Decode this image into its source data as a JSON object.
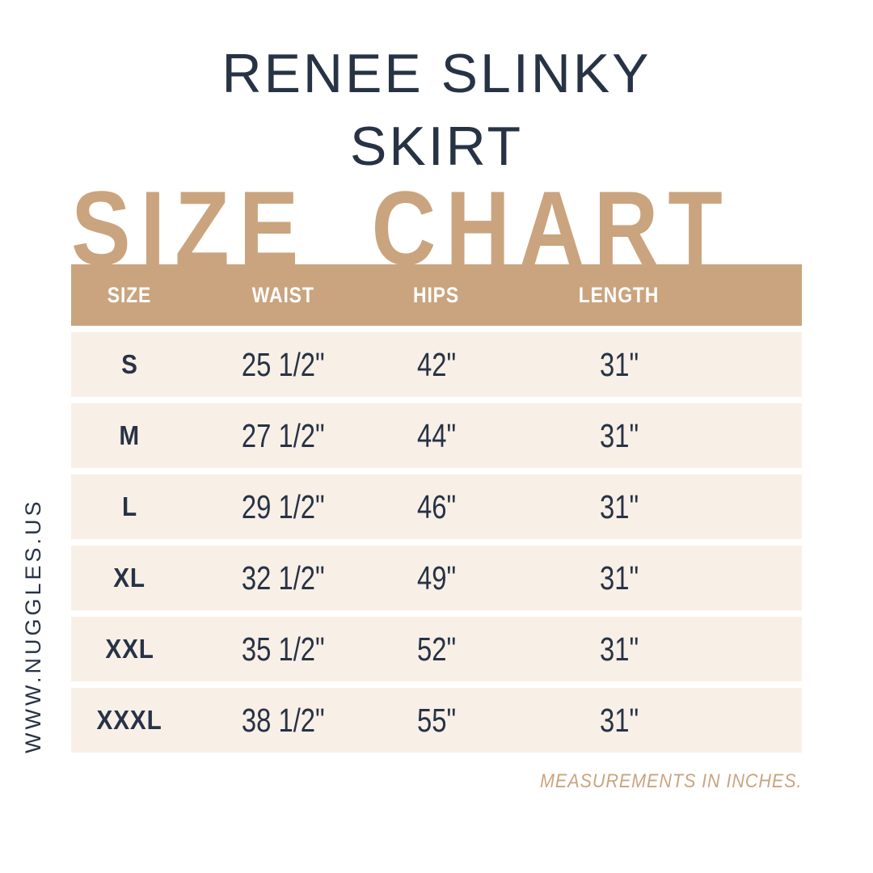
{
  "colors": {
    "tan": "#CAA47E",
    "cream": "#F8EFE7",
    "navy": "#273345",
    "white": "#FFFFFF"
  },
  "title": {
    "line1": "RENEE SLINKY",
    "line2": "SKIRT"
  },
  "heading": "SIZE CHART",
  "table": {
    "headers": [
      "SIZE",
      "WAIST",
      "HIPS",
      "LENGTH"
    ],
    "rows": [
      {
        "size": "S",
        "waist": "25 1/2\"",
        "hips": "42\"",
        "length": "31\""
      },
      {
        "size": "M",
        "waist": "27 1/2\"",
        "hips": "44\"",
        "length": "31\""
      },
      {
        "size": "L",
        "waist": "29 1/2\"",
        "hips": "46\"",
        "length": "31\""
      },
      {
        "size": "XL",
        "waist": "32 1/2\"",
        "hips": "49\"",
        "length": "31\""
      },
      {
        "size": "XXL",
        "waist": "35 1/2\"",
        "hips": "52\"",
        "length": "31\""
      },
      {
        "size": "XXXL",
        "waist": "38 1/2\"",
        "hips": "55\"",
        "length": "31\""
      }
    ]
  },
  "footnote": "MEASUREMENTS IN INCHES.",
  "website": "WWW.NUGGLES.US",
  "chart_data": {
    "type": "table",
    "title": "RENEE SLINKY SKIRT SIZE CHART",
    "columns": [
      "SIZE",
      "WAIST",
      "HIPS",
      "LENGTH"
    ],
    "rows": [
      [
        "S",
        "25 1/2\"",
        "42\"",
        "31\""
      ],
      [
        "M",
        "27 1/2\"",
        "44\"",
        "31\""
      ],
      [
        "L",
        "29 1/2\"",
        "46\"",
        "31\""
      ],
      [
        "XL",
        "32 1/2\"",
        "49\"",
        "31\""
      ],
      [
        "XXL",
        "35 1/2\"",
        "52\"",
        "31\""
      ],
      [
        "XXXL",
        "38 1/2\"",
        "55\"",
        "31\""
      ]
    ],
    "units": "inches",
    "note": "MEASUREMENTS IN INCHES."
  }
}
